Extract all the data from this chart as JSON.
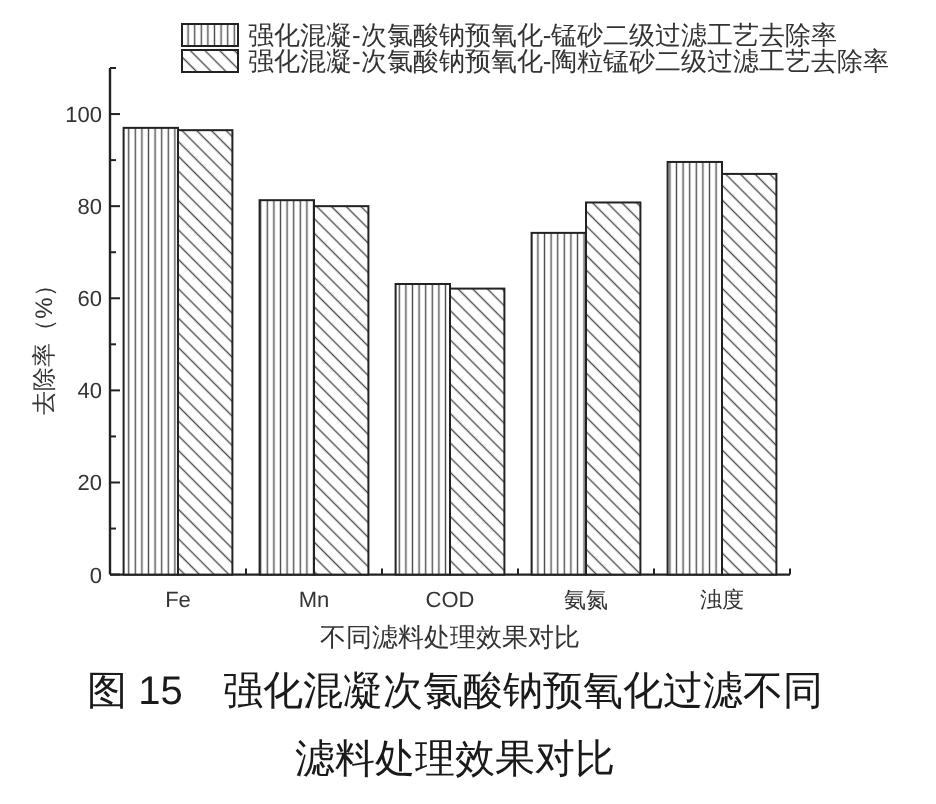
{
  "chart_data": {
    "type": "bar",
    "title": "图 15　强化混凝次氯酸钠预氧化过滤不同滤料处理效果对比",
    "xlabel": "不同滤料处理效果对比",
    "ylabel": "去除率（%）",
    "categories": [
      "Fe",
      "Mn",
      "COD",
      "氨氮",
      "浊度"
    ],
    "series": [
      {
        "name": "强化混凝-次氯酸钠预氧化-锰砂二级过滤工艺去除率",
        "color": "#222222",
        "values": [
          97,
          81.3,
          63.1,
          74.2,
          89.6
        ]
      },
      {
        "name": "强化混凝-次氯酸钠预氧化-陶粒锰砂二级过滤工艺去除率",
        "color": "#222222",
        "values": [
          96.5,
          80,
          62.1,
          80.8,
          87
        ]
      }
    ],
    "ylim": [
      0,
      110
    ],
    "yticks": [
      0,
      20,
      40,
      60,
      80,
      100
    ],
    "legend": "top"
  }
}
